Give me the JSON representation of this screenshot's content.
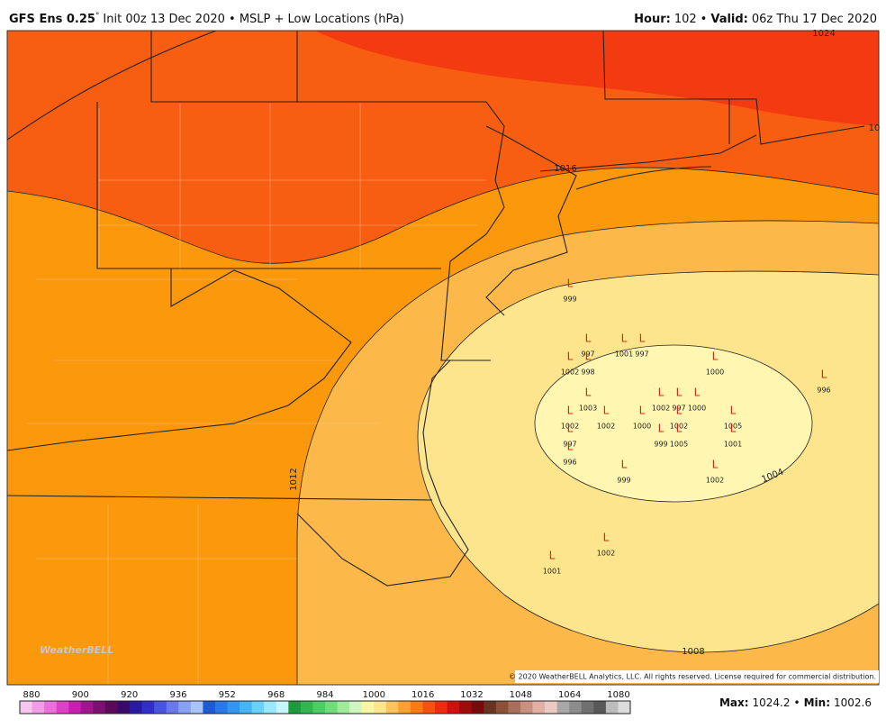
{
  "header": {
    "title_bold": "GFS Ens 0.25",
    "title_degree": "°",
    "title_rest": "Init 00z 13 Dec 2020 • MSLP + Low Locations (hPa)",
    "hour_label": "Hour:",
    "hour": "102",
    "separator": "•",
    "valid_label": "Valid:",
    "valid": "06z Thu 17 Dec 2020"
  },
  "map": {
    "contour_labels": [
      "1024",
      "1016",
      "1012",
      "1004",
      "1008",
      "10"
    ],
    "low_symbol": "L",
    "lows": [
      999,
      997,
      1002,
      998,
      1001,
      997,
      1000,
      996,
      1003,
      1002,
      1002,
      1000,
      1002,
      997,
      1000,
      1002,
      1005,
      997,
      999,
      1005,
      1001,
      996,
      999,
      1002,
      1002,
      1001
    ],
    "logo": "WeatherBELL",
    "copyright": "© 2020 WeatherBELL Analytics, LLC. All rights reserved. License required for commercial distribution."
  },
  "colorbar": {
    "labels": [
      880,
      900,
      920,
      936,
      952,
      968,
      984,
      1000,
      1016,
      1032,
      1048,
      1064,
      1080
    ]
  },
  "footer": {
    "max_label": "Max:",
    "max": 1024.2,
    "separator": "•",
    "min_label": "Min:",
    "min": 1002.6
  }
}
